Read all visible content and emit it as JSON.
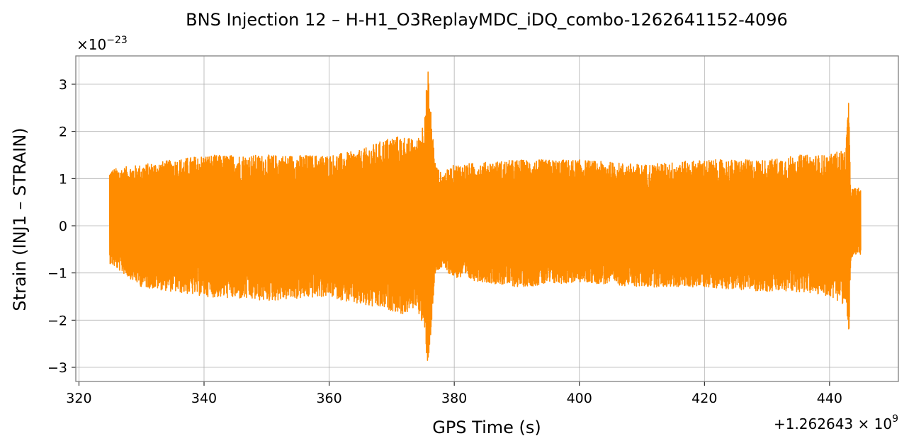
{
  "chart_data": {
    "type": "line",
    "title": "BNS Injection 12 – H-H1_O3ReplayMDC_iDQ_combo-1262641152-4096",
    "xlabel": "GPS Time (s)",
    "ylabel": "Strain (INJ1 – STRAIN)",
    "x_offset_text": "+1.262643 × 10",
    "x_offset_exp": "9",
    "y_scale_text": "×10",
    "y_scale_exp": "−23",
    "xlim": [
      319.5,
      451
    ],
    "ylim": [
      -3.3,
      3.6
    ],
    "xticks": [
      320,
      340,
      360,
      380,
      400,
      420,
      440
    ],
    "xtick_labels": [
      "320",
      "340",
      "360",
      "380",
      "400",
      "420",
      "440"
    ],
    "yticks": [
      -3,
      -2,
      -1,
      0,
      1,
      2,
      3
    ],
    "ytick_labels": [
      "−3",
      "−2",
      "−1",
      "0",
      "1",
      "2",
      "3"
    ],
    "grid": true,
    "series": [
      {
        "color": "#ff8c00",
        "x_start": 324.9,
        "x_end": 445.0,
        "envelope_x": [
          324.9,
          330,
          340,
          350,
          360,
          365,
          370,
          372,
          374,
          375,
          375.8,
          376.3,
          377,
          378,
          380,
          390,
          400,
          410,
          420,
          430,
          435,
          440,
          441.5,
          442.6,
          443.0,
          443.4,
          445.0
        ],
        "envelope_upper": [
          1.2,
          1.3,
          1.5,
          1.5,
          1.5,
          1.6,
          1.9,
          1.9,
          1.8,
          2.2,
          3.3,
          2.4,
          1.3,
          1.1,
          1.3,
          1.4,
          1.4,
          1.3,
          1.4,
          1.4,
          1.5,
          1.5,
          1.6,
          1.6,
          2.85,
          0.8,
          0.8
        ],
        "envelope_lower": [
          -0.8,
          -1.3,
          -1.5,
          -1.6,
          -1.5,
          -1.7,
          -1.8,
          -1.9,
          -1.7,
          -2.2,
          -3.0,
          -2.2,
          -1.0,
          -0.9,
          -1.1,
          -1.3,
          -1.2,
          -1.3,
          -1.3,
          -1.4,
          -1.4,
          -1.5,
          -1.6,
          -1.7,
          -2.7,
          -0.7,
          -0.6
        ]
      }
    ]
  }
}
